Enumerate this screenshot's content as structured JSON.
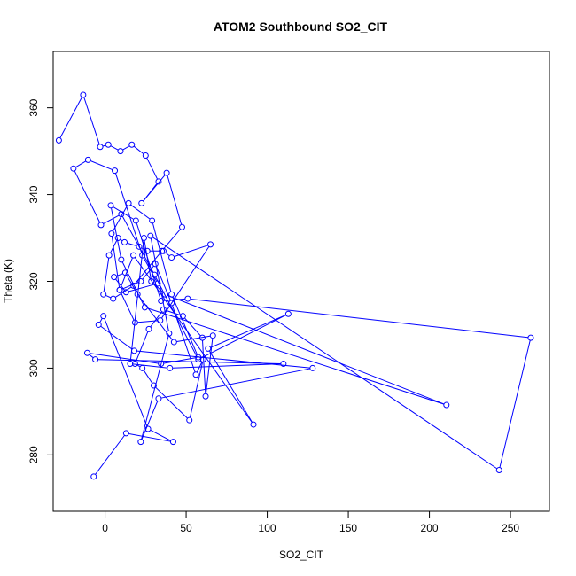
{
  "chart_data": {
    "type": "line",
    "title": "ATOM2 Southbound SO2_CIT",
    "xlabel": "SO2_CIT",
    "ylabel": "Theta (K)",
    "xlim": [
      -32,
      274
    ],
    "ylim": [
      267,
      373
    ],
    "xticks": [
      0,
      50,
      100,
      150,
      200,
      250
    ],
    "yticks": [
      280,
      300,
      320,
      340,
      360
    ],
    "grid": false,
    "legend": "none",
    "series": [
      {
        "color": "#0000ff",
        "marker": "open-circle",
        "x": [
          -28.5,
          -13.5,
          -3,
          2,
          9.5,
          16.5,
          25,
          33,
          22.5,
          38,
          47.5,
          35,
          17.5,
          5,
          -1,
          2.5,
          8,
          12,
          21,
          26,
          36,
          41,
          65,
          34,
          18.5,
          9,
          22,
          31,
          41,
          56,
          60.5,
          52,
          30,
          23,
          18.5,
          27,
          36,
          48,
          60,
          62,
          66.5,
          42.5,
          20,
          12.5,
          5.5,
          13,
          32.5,
          23,
          6,
          -10.5,
          -19.5,
          -2.5,
          10,
          30.5,
          57.5,
          113,
          63.5,
          91.5,
          17.5,
          9,
          4,
          14.5,
          29,
          41,
          57.5,
          34.5,
          -11,
          -6,
          110,
          40,
          15.5,
          24,
          28.5,
          37,
          210.5,
          24.5,
          10,
          3.5,
          19,
          34.5,
          51,
          262.5,
          243,
          28,
          39.5,
          22,
          33,
          128,
          18,
          -4,
          -1,
          26.5,
          42,
          13,
          -7
        ],
        "y": [
          352.5,
          363,
          351,
          351.5,
          350,
          351.5,
          349,
          343,
          338,
          345,
          332.5,
          327,
          319,
          316,
          317,
          326,
          330,
          329,
          328,
          327,
          327,
          325.5,
          328.5,
          311,
          310.5,
          318,
          320,
          324,
          315,
          298.5,
          302,
          288,
          296,
          300,
          301,
          309,
          313.5,
          312,
          307,
          293.5,
          307.5,
          306,
          317,
          322,
          321,
          317.5,
          319.5,
          326,
          345.5,
          348,
          346,
          333,
          335.5,
          321.5,
          302,
          312.5,
          304.5,
          287,
          326,
          318,
          331,
          338,
          334,
          317,
          302.5,
          301,
          303.5,
          302,
          301,
          300,
          301,
          330,
          320,
          317,
          291.5,
          314,
          325,
          337.5,
          334,
          315.5,
          316,
          307,
          276.5,
          330.5,
          308,
          283,
          293,
          300,
          304,
          310,
          312,
          286,
          283,
          285,
          275
        ]
      }
    ]
  }
}
